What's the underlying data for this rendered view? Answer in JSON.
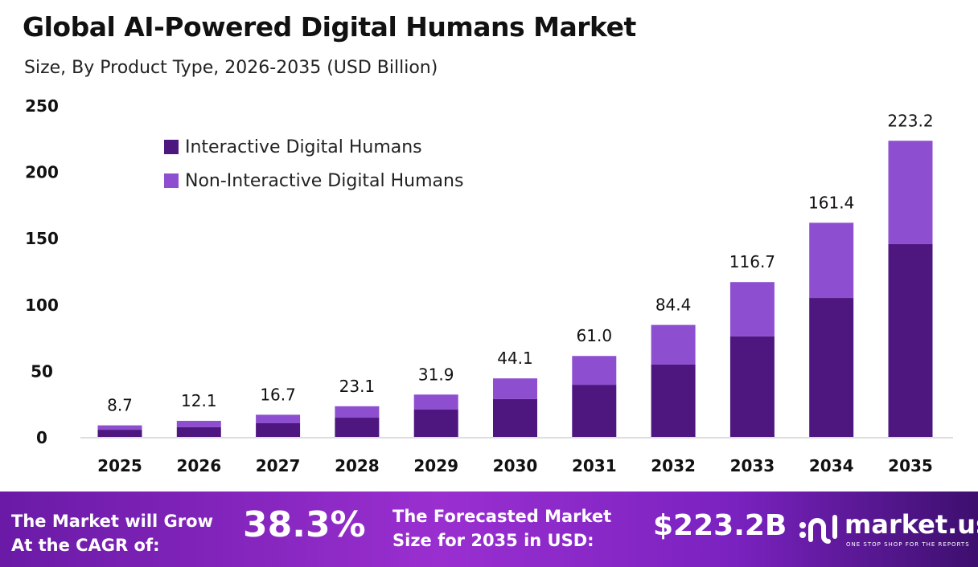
{
  "header": {
    "title": "Global AI-Powered Digital Humans Market",
    "subtitle": "Size, By Product Type, 2026-2035 (USD Billion)"
  },
  "chart_data": {
    "type": "bar",
    "stacked": true,
    "categories": [
      "2025",
      "2026",
      "2027",
      "2028",
      "2029",
      "2030",
      "2031",
      "2032",
      "2033",
      "2034",
      "2035"
    ],
    "series": [
      {
        "name": "Interactive Digital Humans",
        "color": "#4e1780",
        "values": [
          5.4,
          7.3,
          10.3,
          14.5,
          20.6,
          28.5,
          39.3,
          54.5,
          75.7,
          104.7,
          145.3
        ]
      },
      {
        "name": "Non-Interactive Digital Humans",
        "color": "#8d4fcf",
        "values": [
          3.3,
          4.8,
          6.4,
          8.6,
          11.3,
          15.6,
          21.7,
          29.9,
          41.0,
          56.7,
          77.9
        ]
      }
    ],
    "totals": [
      "8.7",
      "12.1",
      "16.7",
      "23.1",
      "31.9",
      "44.1",
      "61.0",
      "84.4",
      "116.7",
      "161.4",
      "223.2"
    ],
    "yticks": [
      "0",
      "50",
      "100",
      "150",
      "200",
      "250"
    ],
    "ylim": [
      0,
      250
    ],
    "grid": false,
    "legend": "top-left"
  },
  "footer": {
    "cagr_label_1": "The Market will Grow",
    "cagr_label_2": "At the CAGR of:",
    "cagr_value": "38.3%",
    "forecast_label_1": "The Forecasted Market",
    "forecast_label_2": "Size for 2035 in USD:",
    "forecast_value": "$223.2B",
    "logo_name": "market.us",
    "logo_tagline": "ONE STOP SHOP FOR THE REPORTS"
  }
}
